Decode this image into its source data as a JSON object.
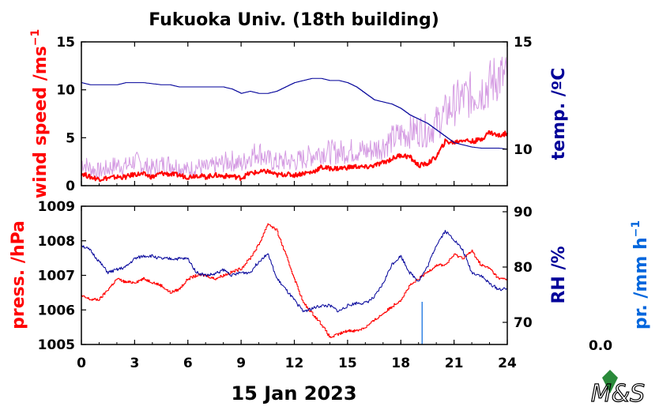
{
  "title": "Fukuoka Univ. (18th building)",
  "date_label": "15 Jan 2023",
  "pr_value": "0.0",
  "logo_text": "M&S",
  "colors": {
    "wind": "#ff0000",
    "wind_raw": "#cc88dd",
    "temp": "#000099",
    "press": "#ff0000",
    "rh": "#000099",
    "pr": "#0066dd",
    "logo_leaf": "#2a8a3a"
  },
  "chart_data": [
    {
      "type": "line",
      "panel": "top",
      "x_ticks": [
        "0",
        "3",
        "6",
        "9",
        "12",
        "15",
        "18",
        "21",
        "24"
      ],
      "xlim": [
        0,
        24
      ],
      "left_axis": {
        "label": "wind speed /ms",
        "label_sup": "−1",
        "ylim": [
          0,
          15
        ],
        "ticks": [
          "0",
          "5",
          "10",
          "15"
        ]
      },
      "right_axis": {
        "label": "temp. /ºC",
        "ylim": [
          8.3,
          15
        ],
        "ticks": [
          "10",
          "15"
        ]
      },
      "series": [
        {
          "axis": "left",
          "style": "raw",
          "x": [
            0,
            0.5,
            1,
            1.5,
            2,
            2.5,
            3,
            3.5,
            4,
            4.5,
            5,
            5.5,
            6,
            6.5,
            7,
            7.5,
            8,
            8.5,
            9,
            9.5,
            10,
            10.5,
            11,
            11.5,
            12,
            12.5,
            13,
            13.5,
            14,
            14.5,
            15,
            15.5,
            16,
            16.5,
            17,
            17.5,
            18,
            18.5,
            19,
            19.5,
            20,
            20.5,
            21,
            21.5,
            22,
            22.5,
            23,
            23.5,
            24
          ],
          "values": [
            2.5,
            1.8,
            1.5,
            1.8,
            2.2,
            2,
            2.6,
            2.1,
            1.8,
            2.2,
            2.3,
            2,
            1.6,
            2,
            1.8,
            2,
            2.4,
            2.6,
            2.2,
            3.1,
            3.6,
            2.7,
            2.4,
            2.6,
            2.5,
            2.8,
            3.2,
            3.6,
            3.5,
            3.5,
            3.6,
            3.7,
            3.6,
            3.8,
            4.2,
            4.8,
            5.3,
            5.6,
            5.8,
            5.7,
            6.5,
            7.5,
            8.5,
            9.1,
            9.5,
            10,
            10.5,
            11.5,
            11
          ]
        },
        {
          "axis": "left",
          "style": "mean",
          "x": [
            0,
            0.5,
            1,
            1.5,
            2,
            2.5,
            3,
            3.5,
            4,
            4.5,
            5,
            5.5,
            6,
            6.5,
            7,
            7.5,
            8,
            8.5,
            9,
            9.5,
            10,
            10.5,
            11,
            11.5,
            12,
            12.5,
            13,
            13.5,
            14,
            14.5,
            15,
            15.5,
            16,
            16.5,
            17,
            17.5,
            18,
            18.5,
            19,
            19.5,
            20,
            20.5,
            21,
            21.5,
            22,
            22.5,
            23,
            23.5,
            24
          ],
          "values": [
            1.3,
            0.9,
            0.7,
            0.8,
            0.9,
            0.9,
            1.2,
            1.2,
            0.9,
            1.3,
            1.2,
            1.1,
            0.9,
            1.1,
            0.9,
            1.1,
            1,
            1,
            0.8,
            1.3,
            1.4,
            1.5,
            1.1,
            1.2,
            1.1,
            1.3,
            1.4,
            1.9,
            1.8,
            1.8,
            1.9,
            2,
            1.9,
            2.1,
            2.4,
            2.8,
            3.2,
            3,
            2.1,
            2.3,
            3,
            4.6,
            4.5,
            4.8,
            4.6,
            4.8,
            5.6,
            5.2,
            5.5
          ]
        },
        {
          "axis": "right",
          "style": "temp",
          "x": [
            0,
            0.5,
            1,
            1.5,
            2,
            2.5,
            3,
            3.5,
            4,
            4.5,
            5,
            5.5,
            6,
            6.5,
            7,
            7.5,
            8,
            8.5,
            9,
            9.5,
            10,
            10.5,
            11,
            11.5,
            12,
            12.5,
            13,
            13.5,
            14,
            14.5,
            15,
            15.5,
            16,
            16.5,
            17,
            17.5,
            18,
            18.5,
            19,
            19.5,
            20,
            20.5,
            21,
            21.5,
            22,
            22.5,
            23,
            23.5,
            24
          ],
          "values": [
            13.1,
            13,
            13,
            13,
            13,
            13.1,
            13.1,
            13.1,
            13.05,
            13,
            13,
            12.9,
            12.9,
            12.9,
            12.9,
            12.9,
            12.9,
            12.8,
            12.6,
            12.7,
            12.6,
            12.6,
            12.7,
            12.9,
            13.1,
            13.2,
            13.3,
            13.3,
            13.2,
            13.2,
            13.1,
            12.9,
            12.6,
            12.3,
            12.2,
            12.1,
            11.9,
            11.6,
            11.4,
            11.2,
            10.9,
            10.6,
            10.3,
            10.2,
            10.1,
            10.05,
            10.05,
            10.05,
            10
          ]
        }
      ]
    },
    {
      "type": "line",
      "panel": "bottom",
      "xlabel": "15 Jan 2023",
      "x_ticks": [
        "0",
        "3",
        "6",
        "9",
        "12",
        "15",
        "18",
        "21",
        "24"
      ],
      "xlim": [
        0,
        24
      ],
      "left_axis": {
        "label": "press. /hPa",
        "ylim": [
          1005,
          1009
        ],
        "ticks": [
          "1005",
          "1006",
          "1007",
          "1008",
          "1009"
        ]
      },
      "right_axis": {
        "label": "RH /%",
        "ylim": [
          66,
          91
        ],
        "ticks": [
          "70",
          "80",
          "90"
        ]
      },
      "far_right_axis": {
        "label": "pr. /mm h",
        "label_sup": "−1"
      },
      "series": [
        {
          "axis": "left",
          "style": "press",
          "x": [
            0,
            0.5,
            1,
            1.5,
            2,
            2.5,
            3,
            3.5,
            4,
            4.5,
            5,
            5.5,
            6,
            6.5,
            7,
            7.5,
            8,
            8.5,
            9,
            9.5,
            10,
            10.5,
            11,
            11.5,
            12,
            12.5,
            13,
            13.5,
            14,
            14.5,
            15,
            15.5,
            16,
            16.5,
            17,
            17.5,
            18,
            18.5,
            19,
            19.5,
            20,
            20.5,
            21,
            21.5,
            22,
            22.5,
            23,
            23.5,
            24
          ],
          "values": [
            1006.4,
            1006.3,
            1006.3,
            1006.6,
            1006.9,
            1006.8,
            1006.8,
            1006.9,
            1006.8,
            1006.7,
            1006.5,
            1006.6,
            1006.9,
            1007,
            1007,
            1006.9,
            1007,
            1007.1,
            1007.2,
            1007.5,
            1007.9,
            1008.5,
            1008.3,
            1007.6,
            1006.9,
            1006.2,
            1005.9,
            1005.6,
            1005.2,
            1005.3,
            1005.4,
            1005.4,
            1005.5,
            1005.7,
            1005.9,
            1006.1,
            1006.3,
            1006.7,
            1006.9,
            1007.1,
            1007.3,
            1007.3,
            1007.6,
            1007.5,
            1007.7,
            1007.3,
            1007.2,
            1006.9,
            1006.9
          ]
        },
        {
          "axis": "right",
          "style": "rh",
          "x": [
            0,
            0.5,
            1,
            1.5,
            2,
            2.5,
            3,
            3.5,
            4,
            4.5,
            5,
            5.5,
            6,
            6.5,
            7,
            7.5,
            8,
            8.5,
            9,
            9.5,
            10,
            10.5,
            11,
            11.5,
            12,
            12.5,
            13,
            13.5,
            14,
            14.5,
            15,
            15.5,
            16,
            16.5,
            17,
            17.5,
            18,
            18.5,
            19,
            19.5,
            20,
            20.5,
            21,
            21.5,
            22,
            22.5,
            23,
            23.5,
            24
          ],
          "values": [
            84,
            83,
            81,
            79,
            79.5,
            80,
            81.5,
            82,
            82,
            81.5,
            81.5,
            81.5,
            81.5,
            79,
            78.5,
            78.7,
            79.5,
            78.5,
            79,
            79,
            81,
            82.5,
            78,
            76,
            74,
            72,
            72.5,
            73,
            73,
            72,
            73,
            73.5,
            73.5,
            74.5,
            77,
            80.5,
            82,
            79,
            77.5,
            80,
            84,
            86.5,
            85,
            83,
            79,
            78.5,
            77,
            76,
            76
          ]
        },
        {
          "axis": "far",
          "style": "pr",
          "x": [
            19.2
          ],
          "values": [
            0.6
          ]
        }
      ]
    }
  ]
}
